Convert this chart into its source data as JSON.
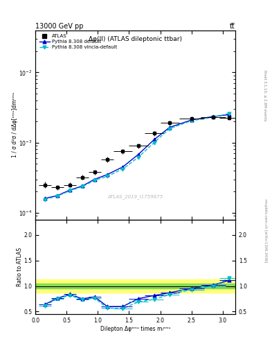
{
  "title_top": "13000 GeV pp",
  "title_top_right": "tt̅",
  "plot_title": "Δφ(ll) (ATLAS dileptonic ttbar)",
  "watermark": "ATLAS_2019_I1759875",
  "right_label_top": "Rivet 3.1.10, ≥ 2.8M events",
  "right_label_bot": "mcplots.cern.ch [arXiv:1306.3436]",
  "xlabel": "Dilepton Δφᵉᵐᵘ times mᵢᵉᵐᵘ",
  "ylabel_main": "1 / σ d²σ / dΔφ[ᵉᵐᵘ]dmᵉᵐᵘ",
  "ylabel_ratio": "Ratio to ATLAS",
  "xlim": [
    0.0,
    3.2
  ],
  "ylim_main": [
    8e-05,
    0.04
  ],
  "ylim_ratio": [
    0.45,
    2.3
  ],
  "ratio_yticks": [
    0.5,
    1.0,
    1.5,
    2.0
  ],
  "atlas_x": [
    0.15,
    0.35,
    0.55,
    0.75,
    0.95,
    1.15,
    1.4,
    1.65,
    1.9,
    2.15,
    2.5,
    2.85,
    3.1
  ],
  "atlas_y": [
    0.00025,
    0.00023,
    0.00025,
    0.00032,
    0.00038,
    0.00058,
    0.00075,
    0.0009,
    0.00135,
    0.0019,
    0.0022,
    0.0023,
    0.00225
  ],
  "atlas_xerr": [
    0.1,
    0.1,
    0.1,
    0.1,
    0.1,
    0.1,
    0.15,
    0.15,
    0.15,
    0.15,
    0.2,
    0.2,
    0.15
  ],
  "atlas_yerr": [
    2.5e-05,
    2e-05,
    2e-05,
    2.5e-05,
    3e-05,
    5e-05,
    6e-05,
    7e-05,
    0.0001,
    0.00013,
    0.00015,
    0.00016,
    0.00015
  ],
  "py_def_x": [
    0.15,
    0.35,
    0.55,
    0.75,
    0.95,
    1.15,
    1.4,
    1.65,
    1.9,
    2.15,
    2.5,
    2.85,
    3.1
  ],
  "py_def_y": [
    0.00016,
    0.000175,
    0.00021,
    0.00024,
    0.0003,
    0.00035,
    0.00045,
    0.00068,
    0.0011,
    0.00165,
    0.0021,
    0.00235,
    0.0025
  ],
  "py_vin_x": [
    0.15,
    0.35,
    0.55,
    0.75,
    0.95,
    1.15,
    1.4,
    1.65,
    1.9,
    2.15,
    2.5,
    2.85,
    3.1
  ],
  "py_vin_y": [
    0.000155,
    0.000172,
    0.000205,
    0.000235,
    0.00029,
    0.00033,
    0.00042,
    0.00062,
    0.001,
    0.00158,
    0.00205,
    0.0023,
    0.0026
  ],
  "ratio_def_y": [
    0.64,
    0.76,
    0.84,
    0.75,
    0.79,
    0.6,
    0.6,
    0.755,
    0.815,
    0.87,
    0.955,
    1.02,
    1.11
  ],
  "ratio_vin_y": [
    0.62,
    0.748,
    0.82,
    0.735,
    0.763,
    0.569,
    0.56,
    0.689,
    0.74,
    0.832,
    0.932,
    1.0,
    1.155
  ],
  "ratio_def_err": [
    0.04,
    0.03,
    0.03,
    0.03,
    0.03,
    0.04,
    0.04,
    0.04,
    0.035,
    0.03,
    0.03,
    0.025,
    0.025
  ],
  "ratio_vin_err": [
    0.04,
    0.03,
    0.03,
    0.03,
    0.03,
    0.04,
    0.04,
    0.04,
    0.035,
    0.03,
    0.03,
    0.025,
    0.025
  ],
  "color_atlas": "#000000",
  "color_default": "#0000cc",
  "color_vincia": "#00bbcc",
  "green_band_lo": 0.95,
  "green_band_hi": 1.05,
  "yellow_band_lo": 0.875,
  "yellow_band_hi": 1.125,
  "background_color": "#ffffff"
}
